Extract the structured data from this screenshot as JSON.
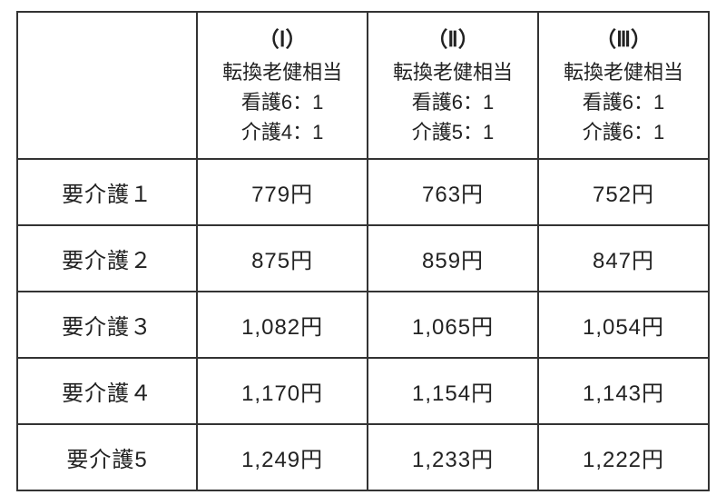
{
  "table": {
    "columns": [
      {
        "roman": "（Ⅰ）",
        "line1": "転換老健相当",
        "line2": "看護6：1",
        "line3": "介護4：1"
      },
      {
        "roman": "（Ⅱ）",
        "line1": "転換老健相当",
        "line2": "看護6：1",
        "line3": "介護5：1"
      },
      {
        "roman": "（Ⅲ）",
        "line1": "転換老健相当",
        "line2": "看護6：1",
        "line3": "介護6：1"
      }
    ],
    "rows": [
      {
        "label": "要介護１",
        "values": [
          "779円",
          "763円",
          "752円"
        ]
      },
      {
        "label": "要介護２",
        "values": [
          "875円",
          "859円",
          "847円"
        ]
      },
      {
        "label": "要介護３",
        "values": [
          "1,082円",
          "1,065円",
          "1,054円"
        ]
      },
      {
        "label": "要介護４",
        "values": [
          "1,170円",
          "1,154円",
          "1,143円"
        ]
      },
      {
        "label": "要介護5",
        "values": [
          "1,249円",
          "1,233円",
          "1,222円"
        ]
      }
    ],
    "style": {
      "border_color": "#333333",
      "background_color": "#ffffff",
      "text_color": "#222222",
      "header_fontsize_pt": 17,
      "cell_fontsize_pt": 18,
      "first_col_width_pct": 26,
      "data_col_width_pct": 24.66
    }
  }
}
